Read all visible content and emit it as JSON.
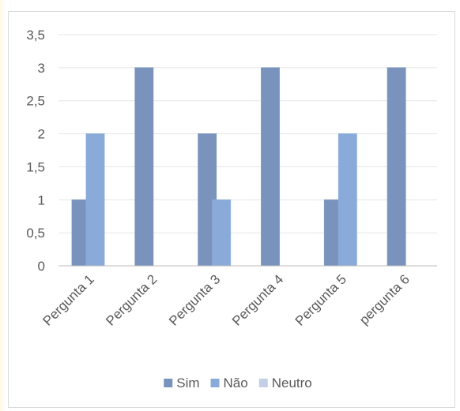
{
  "chart_data": {
    "type": "bar",
    "categories": [
      "Pergunta 1",
      "Pergunta 2",
      "Pergunta 3",
      "Pergunta 4",
      "Pergunta 5",
      "pergunta 6"
    ],
    "series": [
      {
        "name": "Sim",
        "values": [
          1,
          3,
          2,
          3,
          1,
          3
        ],
        "color": "#7a93bd"
      },
      {
        "name": "Não",
        "values": [
          2,
          0,
          1,
          0,
          2,
          0
        ],
        "color": "#8aabd9"
      },
      {
        "name": "Neutro",
        "values": [
          0,
          0,
          0,
          0,
          0,
          0
        ],
        "color": "#c3cfe6"
      }
    ],
    "yticks": [
      "0",
      "0,5",
      "1",
      "1,5",
      "2",
      "2,5",
      "3",
      "3,5"
    ],
    "ylim": [
      0,
      3.5
    ],
    "grid": true,
    "legend_position": "bottom"
  }
}
